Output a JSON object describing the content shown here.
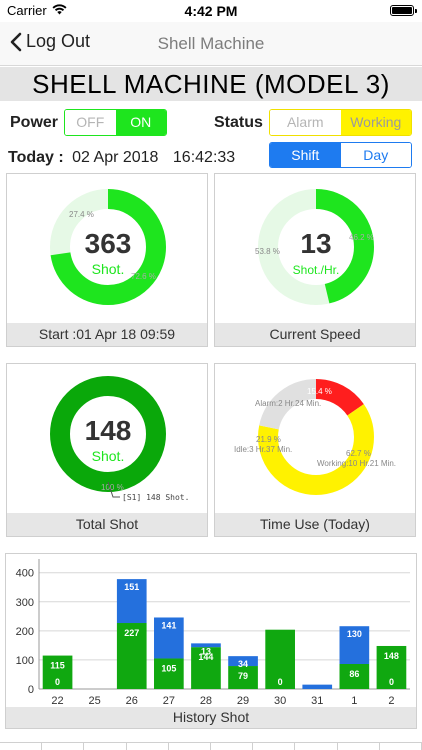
{
  "status_bar": {
    "carrier": "Carrier",
    "time": "4:42 PM"
  },
  "nav": {
    "back_label": "Log Out",
    "title": "Shell Machine"
  },
  "machine_title": "SHELL MACHINE (MODEL 3)",
  "power": {
    "label": "Power",
    "off": "OFF",
    "on": "ON",
    "selected": "ON"
  },
  "status": {
    "label": "Status",
    "alarm": "Alarm",
    "working": "Working",
    "selected": "Working"
  },
  "mode": {
    "shift": "Shift",
    "day": "Day",
    "selected": "Shift"
  },
  "today": {
    "label": "Today :",
    "date": "02 Apr 2018",
    "time": "16:42:33"
  },
  "colors": {
    "green": "#1ee51e",
    "dark_green": "#0aa80a",
    "light_green": "#e6f9e6",
    "yellow": "#fff200",
    "red": "#ff1e1e",
    "grey": "#e0e0e0",
    "blue": "#1e7bf0",
    "bar_green": "#10a810",
    "bar_blue": "#2470dd"
  },
  "cards": {
    "shot": {
      "value": "363",
      "unit": "Shot.",
      "pct_a": "27.4 %",
      "pct_b": "72.6 %",
      "fraction": 0.726,
      "footer": "Start :01 Apr 18 09:59"
    },
    "speed": {
      "value": "13",
      "unit": "Shot./Hr.",
      "pct_a": "53.8 %",
      "pct_b": "46.2 %",
      "fraction": 0.462,
      "footer": "Current Speed"
    },
    "total": {
      "value": "148",
      "unit": "Shot.",
      "pct": "100 %",
      "callout": "[S1] 148 Shot.",
      "fraction": 1.0,
      "footer": "Total Shot"
    },
    "time_use": {
      "footer": "Time Use (Today)",
      "segments": [
        {
          "name": "Alarm",
          "pct": "15.4 %",
          "label": "Alarm:2 Hr.24 Min.",
          "fraction": 0.154,
          "color": "#ff1e1e"
        },
        {
          "name": "Working",
          "pct": "62.7 %",
          "label": "Working:10 Hr.21 Min.",
          "fraction": 0.627,
          "color": "#fff200"
        },
        {
          "name": "Idle",
          "pct": "21.9 %",
          "label": "Idle:3 Hr.37 Min.",
          "fraction": 0.219,
          "color": "#e0e0e0"
        }
      ]
    }
  },
  "chart_data": {
    "type": "bar",
    "title": "History Shot",
    "categories": [
      "22",
      "25",
      "26",
      "27",
      "28",
      "29",
      "30",
      "31",
      "1",
      "2"
    ],
    "series": [
      {
        "color": "#10a810",
        "values": [
          115,
          0,
          227,
          105,
          144,
          79,
          204,
          0,
          86,
          148
        ]
      },
      {
        "color": "#2470dd",
        "values": [
          0,
          0,
          151,
          141,
          13,
          34,
          0,
          15,
          130,
          0
        ]
      }
    ],
    "bar_labels": {
      "green": [
        "115",
        "",
        "227",
        "105",
        "144",
        "79",
        "",
        "",
        "86",
        "148"
      ],
      "green_zero": [
        "0",
        "",
        "",
        "",
        "",
        "",
        "0",
        "",
        "",
        "0"
      ],
      "blue": [
        "",
        "",
        "151",
        "141",
        "13",
        "34",
        "",
        "",
        "130",
        ""
      ]
    },
    "y_ticks": [
      "0",
      "100",
      "200",
      "300",
      "400"
    ],
    "ylim": [
      0,
      430
    ],
    "grid": true,
    "stacked": true
  },
  "history_footer": "History Shot"
}
